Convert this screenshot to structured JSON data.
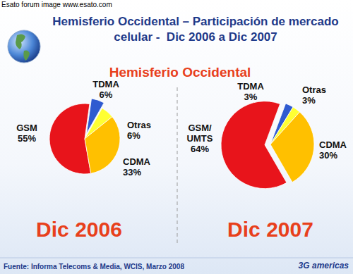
{
  "header": {
    "watermark": "Esato forum image www.esato.com",
    "title": [
      "Hemisferio Occidental – Participación de mercado",
      "celular -  Dic 2006 a Dic 2007"
    ],
    "subtitle": "Hemisferio Occidental"
  },
  "chart_data": [
    {
      "type": "pie",
      "title": "Dic 2006",
      "categories": [
        "GSM",
        "TDMA",
        "Otras",
        "CDMA"
      ],
      "values": [
        55,
        6,
        6,
        33
      ],
      "value_labels": [
        "55%",
        "6%",
        "6%",
        "33%"
      ],
      "colors": [
        "#e8141b",
        "#2f5bd0",
        "#ffff33",
        "#ffc000"
      ],
      "data_labels": true
    },
    {
      "type": "pie",
      "title": "Dic 2007",
      "categories": [
        "GSM/ UMTS",
        "TDMA",
        "Otras",
        "CDMA"
      ],
      "values": [
        64,
        3,
        3,
        30
      ],
      "value_labels": [
        "64%",
        "3%",
        "3%",
        "30%"
      ],
      "colors": [
        "#e8141b",
        "#2f5bd0",
        "#ffff33",
        "#ffc000"
      ],
      "data_labels": true
    }
  ],
  "footer": {
    "source": "Fuente: Informa Telecoms & Media, WCIS, Marzo 2008",
    "logo": "3G americas"
  }
}
